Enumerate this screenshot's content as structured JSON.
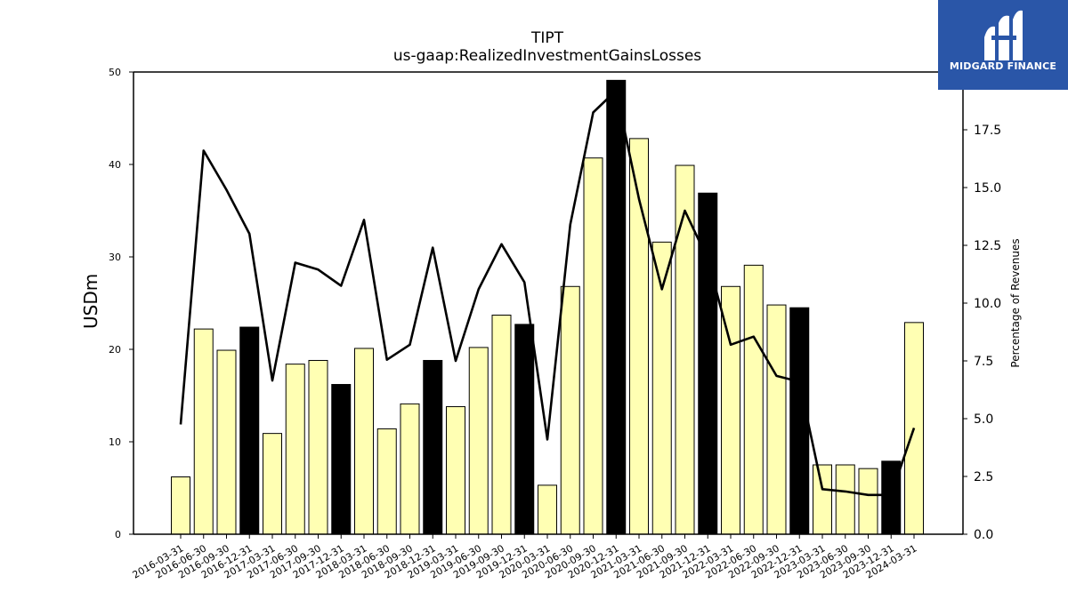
{
  "chart_data": {
    "type": "bar",
    "title": "TIPT",
    "subtitle": "us-gaap:RealizedInvestmentGainsLosses",
    "ylabel": "USDm",
    "y2label": "Percentage of Revenues",
    "ylim": [
      0,
      50
    ],
    "y2lim": [
      0,
      20
    ],
    "yticks": [
      0,
      10,
      20,
      30,
      40,
      50
    ],
    "y2ticks": [
      "0.0",
      "2.5",
      "5.0",
      "7.5",
      "10.0",
      "12.5",
      "15.0",
      "17.5"
    ],
    "categories": [
      "2016-03-31",
      "2016-06-30",
      "2016-09-30",
      "2016-12-31",
      "2017-03-31",
      "2017-06-30",
      "2017-09-30",
      "2017-12-31",
      "2018-03-31",
      "2018-06-30",
      "2018-09-30",
      "2018-12-31",
      "2019-03-31",
      "2019-06-30",
      "2019-09-30",
      "2019-12-31",
      "2020-03-31",
      "2020-06-30",
      "2020-09-30",
      "2020-12-31",
      "2021-03-31",
      "2021-06-30",
      "2021-09-30",
      "2021-12-31",
      "2022-03-31",
      "2022-06-30",
      "2022-09-30",
      "2022-12-31",
      "2023-03-31",
      "2023-06-30",
      "2023-09-30",
      "2023-12-31",
      "2024-03-31"
    ],
    "series": [
      {
        "kind": "bar",
        "values": [
          6.2,
          22.2,
          19.9,
          22.4,
          10.9,
          18.4,
          18.8,
          16.2,
          20.1,
          11.4,
          14.1,
          18.8,
          13.8,
          20.2,
          23.7,
          22.7,
          5.3,
          26.8,
          40.7,
          49.1,
          42.8,
          31.6,
          39.9,
          36.9,
          26.8,
          29.1,
          24.8,
          24.5,
          7.5,
          7.5,
          7.1,
          7.9,
          22.9
        ],
        "colors": {
          "normal": "#ffffb3",
          "year_end": "#000000",
          "edge": "#000000"
        }
      },
      {
        "kind": "line",
        "axis": "right",
        "values": [
          4.75,
          16.6,
          14.9,
          13.0,
          6.65,
          11.75,
          11.45,
          10.75,
          13.6,
          7.55,
          8.2,
          12.4,
          7.5,
          10.6,
          12.55,
          10.9,
          4.1,
          13.4,
          18.25,
          19.2,
          14.5,
          10.6,
          14.0,
          11.9,
          8.2,
          8.55,
          6.85,
          6.6,
          1.95,
          1.85,
          1.7,
          1.7,
          4.6
        ],
        "color": "#000000"
      }
    ],
    "grid": false,
    "legend": "none"
  },
  "logo": {
    "text": "MIDGARD FINANCE",
    "bg": "#2a56a8"
  }
}
